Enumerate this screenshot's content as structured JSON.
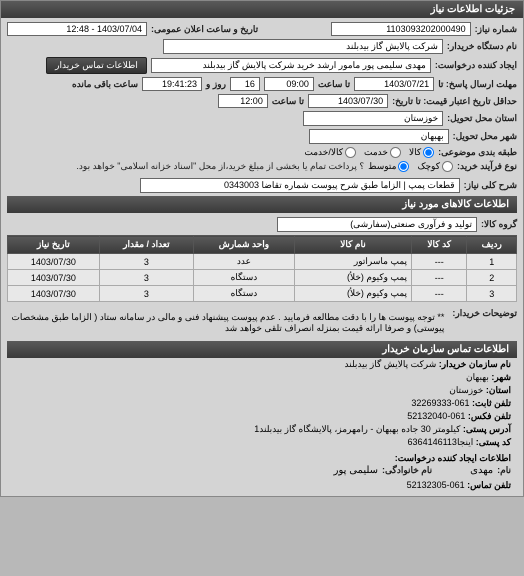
{
  "panel1_title": "جزئیات اطلاعات نیاز",
  "number_label": "شماره نیاز:",
  "number_value": "1103093202000490",
  "public_date_label": "تاریخ و ساعت اعلان عمومی:",
  "public_date_value": "1403/07/04 - 12:48",
  "buyer_label": "نام دستگاه خریدار:",
  "buyer_value": "شرکت پالایش گاز بیدبلند",
  "requester_label": "ایجاد کننده درخواست:",
  "requester_value": "مهدی سلیمی پور مامور ارشد خرید شرکت پالایش گاز بیدبلند",
  "contact_btn": "اطلاعات تماس خریدار",
  "deadline_reply_label": "مهلت ارسال پاسخ: تا",
  "deadline_reply_date": "1403/07/21",
  "deadline_reply_time_label": "تا ساعت",
  "deadline_reply_time": "09:00",
  "remain_label": "روز و",
  "remain_days": "16",
  "remain_time_label": "ساعت باقی مانده",
  "remain_time": "19:41:23",
  "credit_deadline_label": "حداقل تاریخ اعتبار قیمت: تا تاریخ:",
  "credit_date": "1403/07/30",
  "credit_time_label": "تا ساعت",
  "credit_time": "12:00",
  "province_label": "استان محل تحویل:",
  "province_value": "خوزستان",
  "city_label": "شهر محل تحویل:",
  "city_value": "بهبهان",
  "classify_label": "طبقه بندی موضوعی:",
  "classify_options": [
    "کالا",
    "خدمت",
    "کالا/خدمت"
  ],
  "process_label": "نوع فرآیند خرید:",
  "process_options": [
    "کوچک",
    "متوسط"
  ],
  "process_note": "؟ پرداخت تمام یا بخشی از مبلغ خرید،از محل \"اسناد خزانه اسلامی\" خواهد بود.",
  "desc_label": "شرح کلی نیاز:",
  "desc_value": "قطعات پمپ | الزاما طبق شرح پیوست شماره تقاضا 0343003",
  "goods_header": "اطلاعات کالاهای مورد نیاز",
  "group_label": "گروه کالا:",
  "group_value": "تولید و فرآوری صنعتی(سفارشی)",
  "table_headers": [
    "ردیف",
    "کد کالا",
    "نام کالا",
    "واحد شمارش",
    "تعداد / مقدار",
    "تاریخ نیاز"
  ],
  "table_rows": [
    [
      "1",
      "---",
      "پمپ ماسراتور",
      "عدد",
      "3",
      "1403/07/30"
    ],
    [
      "2",
      "---",
      "پمپ وکیوم (خلأ)",
      "دستگاه",
      "3",
      "1403/07/30"
    ],
    [
      "3",
      "---",
      "پمپ وکیوم (خلأ)",
      "دستگاه",
      "3",
      "1403/07/30"
    ]
  ],
  "remarks_label": "توضیحات خریدار:",
  "remarks_text": "** توجه پیوست ها را با دقت مطالعه فرمایید . عدم پیوست پیشنهاد فنی و مالی در سامانه ستاد ( الزاما طبق مشخصات پیوستی) و صرفا ارائه قیمت بمنزله انصراف تلقی خواهد شد",
  "contact_header": "اطلاعات تماس سازمان خریدار",
  "org_name_label": "نام سازمان خریدار:",
  "org_name_value": "شرکت پالایش گاز بیدبلند",
  "org_city_label": "شهر:",
  "org_city_value": "بهبهان",
  "org_province_label": "استان:",
  "org_province_value": "خوزستان",
  "org_phone_label": "تلفن ثابت:",
  "org_phone_value": "061-32269333",
  "org_fax_label": "تلفن فکس:",
  "org_fax_value": "061-52132040",
  "org_addr_label": "آدرس پستی:",
  "org_addr_value": "کیلومتر 30 جاده بهبهان - رامهرمز، پالایشگاه گاز بیدبلند1",
  "org_postal_label": "کد پستی:",
  "org_postal_value": "اینجا6364146113",
  "creator_header": "اطلاعات ایجاد کننده درخواست:",
  "creator_name_label": "نام:",
  "creator_name_value": "مهدی",
  "creator_family_label": "نام خانوادگی:",
  "creator_family_value": "سلیمی پور",
  "creator_phone_label": "تلفن تماس:",
  "creator_phone_value": "061-52132305"
}
